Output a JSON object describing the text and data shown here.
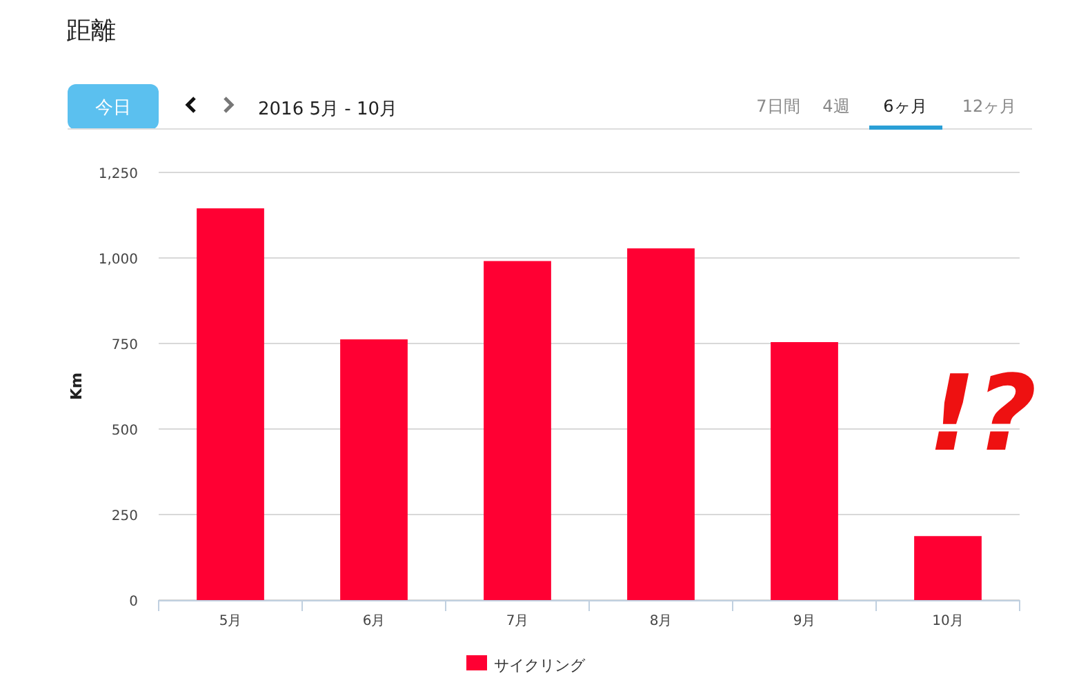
{
  "chart_data": {
    "type": "bar",
    "title": "距離",
    "ylabel": "Km",
    "categories": [
      "5月",
      "6月",
      "7月",
      "8月",
      "9月",
      "10月"
    ],
    "series": [
      {
        "name": "サイクリング",
        "color": "#ff0033",
        "values": [
          1145,
          762,
          991,
          1028,
          754,
          187
        ]
      }
    ],
    "ylim": [
      0,
      1250
    ],
    "yticks": [
      0,
      250,
      500,
      750,
      {
        "value": 1000,
        "label": "1,000"
      },
      {
        "value": 1250,
        "label": "1,250"
      }
    ],
    "grid": "y",
    "legend": "bottom",
    "annotations": [
      "今日",
      "2016 5月 - 10月",
      "7日間",
      "4週",
      "6ヶ月",
      "12ヶ月",
      "!?"
    ]
  }
}
